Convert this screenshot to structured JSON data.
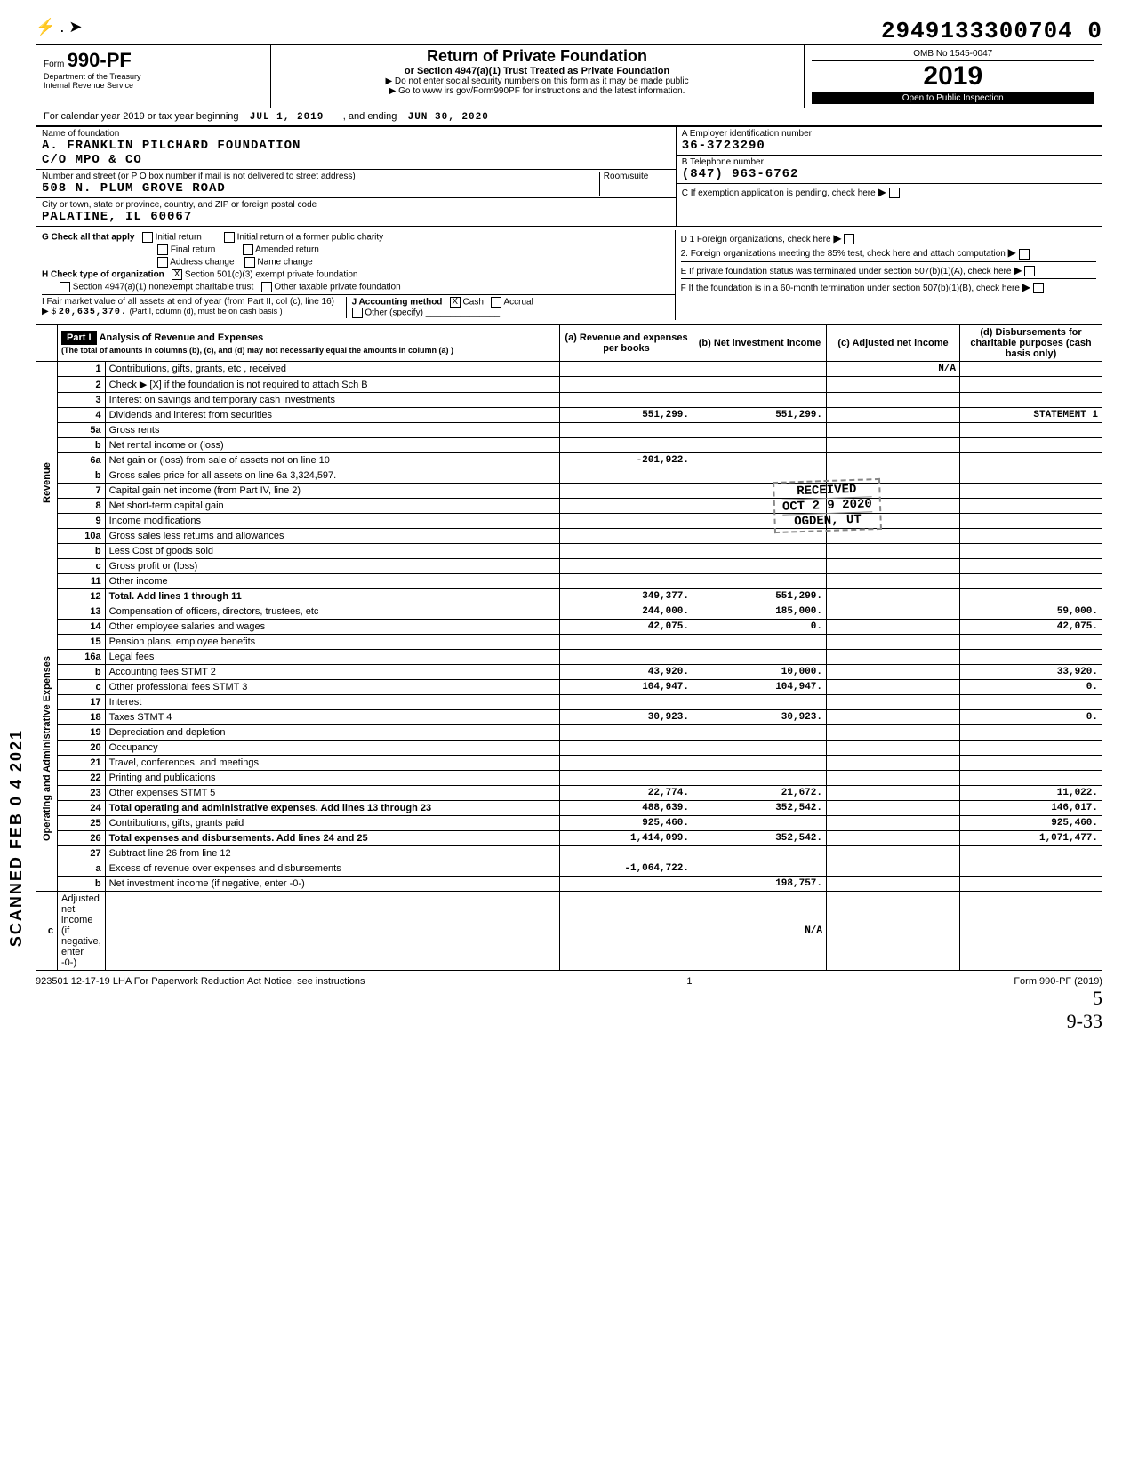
{
  "doc_number": "2949133300704 0",
  "form": {
    "label": "Form",
    "number": "990-PF",
    "dept": "Department of the Treasury",
    "irs": "Internal Revenue Service",
    "title": "Return of Private Foundation",
    "subtitle": "or Section 4947(a)(1) Trust Treated as Private Foundation",
    "instr1": "▶ Do not enter social security numbers on this form as it may be made public",
    "instr2": "▶ Go to www irs gov/Form990PF for instructions and the latest information.",
    "omb": "OMB No 1545-0047",
    "year": "2019",
    "inspection": "Open to Public Inspection"
  },
  "cal_year": {
    "label": "For calendar year 2019 or tax year beginning",
    "begin": "JUL 1, 2019",
    "ending_label": ", and ending",
    "end": "JUN 30, 2020"
  },
  "name": {
    "label": "Name of foundation",
    "line1": "A. FRANKLIN PILCHARD FOUNDATION",
    "line2": "C/O MPO & CO"
  },
  "address": {
    "street_label": "Number and street (or P O box number if mail is not delivered to street address)",
    "room_label": "Room/suite",
    "street": "508 N. PLUM GROVE ROAD",
    "city_label": "City or town, state or province, country, and ZIP or foreign postal code",
    "city": "PALATINE, IL  60067"
  },
  "ein": {
    "label": "A Employer identification number",
    "value": "36-3723290"
  },
  "phone": {
    "label": "B Telephone number",
    "value": "(847) 963-6762"
  },
  "c_label": "C If exemption application is pending, check here",
  "d1_label": "D 1 Foreign organizations, check here",
  "d2_label": "2. Foreign organizations meeting the 85% test, check here and attach computation",
  "e_label": "E If private foundation status was terminated under section 507(b)(1)(A), check here",
  "f_label": "F If the foundation is in a 60-month termination under section 507(b)(1)(B), check here",
  "g": {
    "label": "G  Check all that apply",
    "opts": [
      "Initial return",
      "Final return",
      "Address change",
      "Initial return of a former public charity",
      "Amended return",
      "Name change"
    ]
  },
  "h": {
    "label": "H  Check type of organization",
    "opt1": "Section 501(c)(3) exempt private foundation",
    "opt2": "Section 4947(a)(1) nonexempt charitable trust",
    "opt3": "Other taxable private foundation",
    "checked": "X"
  },
  "i": {
    "label": "I  Fair market value of all assets at end of year (from Part II, col (c), line 16)",
    "amount_label": "▶ $",
    "amount": "20,635,370.",
    "note": "(Part I, column (d), must be on cash basis )"
  },
  "j": {
    "label": "J  Accounting method",
    "cash": "Cash",
    "cash_chk": "X",
    "accrual": "Accrual",
    "other": "Other (specify)"
  },
  "part1": {
    "title": "Part I",
    "heading": "Analysis of Revenue and Expenses",
    "note": "(The total of amounts in columns (b), (c), and (d) may not necessarily equal the amounts in column (a) )",
    "col_a": "(a) Revenue and expenses per books",
    "col_b": "(b) Net investment income",
    "col_c": "(c) Adjusted net income",
    "col_d": "(d) Disbursements for charitable purposes (cash basis only)"
  },
  "side": {
    "revenue": "Revenue",
    "expenses": "Operating and Administrative Expenses"
  },
  "scanned": "SCANNED FEB 0 4 2021",
  "stamp": {
    "received": "RECEIVED",
    "date": "OCT 2 9 2020",
    "loc": "OGDEN, UT"
  },
  "rows": [
    {
      "n": "1",
      "label": "Contributions, gifts, grants, etc , received",
      "a": "",
      "b": "",
      "c": "N/A",
      "d": ""
    },
    {
      "n": "2",
      "label": "Check ▶ [X] if the foundation is not required to attach Sch B",
      "a": "",
      "b": "",
      "c": "",
      "d": ""
    },
    {
      "n": "3",
      "label": "Interest on savings and temporary cash investments",
      "a": "",
      "b": "",
      "c": "",
      "d": ""
    },
    {
      "n": "4",
      "label": "Dividends and interest from securities",
      "a": "551,299.",
      "b": "551,299.",
      "c": "",
      "d": "STATEMENT 1"
    },
    {
      "n": "5a",
      "label": "Gross rents",
      "a": "",
      "b": "",
      "c": "",
      "d": ""
    },
    {
      "n": "b",
      "label": "Net rental income or (loss)",
      "a": "",
      "b": "",
      "c": "",
      "d": ""
    },
    {
      "n": "6a",
      "label": "Net gain or (loss) from sale of assets not on line 10",
      "a": "-201,922.",
      "b": "",
      "c": "",
      "d": ""
    },
    {
      "n": "b",
      "label": "Gross sales price for all assets on line 6a   3,324,597.",
      "a": "",
      "b": "",
      "c": "",
      "d": ""
    },
    {
      "n": "7",
      "label": "Capital gain net income (from Part IV, line 2)",
      "a": "",
      "b": "",
      "c": "",
      "d": ""
    },
    {
      "n": "8",
      "label": "Net short-term capital gain",
      "a": "",
      "b": "",
      "c": "",
      "d": ""
    },
    {
      "n": "9",
      "label": "Income modifications",
      "a": "",
      "b": "",
      "c": "",
      "d": ""
    },
    {
      "n": "10a",
      "label": "Gross sales less returns and allowances",
      "a": "",
      "b": "",
      "c": "",
      "d": ""
    },
    {
      "n": "b",
      "label": "Less Cost of goods sold",
      "a": "",
      "b": "",
      "c": "",
      "d": ""
    },
    {
      "n": "c",
      "label": "Gross profit or (loss)",
      "a": "",
      "b": "",
      "c": "",
      "d": ""
    },
    {
      "n": "11",
      "label": "Other income",
      "a": "",
      "b": "",
      "c": "",
      "d": ""
    },
    {
      "n": "12",
      "label": "Total. Add lines 1 through 11",
      "a": "349,377.",
      "b": "551,299.",
      "c": "",
      "d": ""
    },
    {
      "n": "13",
      "label": "Compensation of officers, directors, trustees, etc",
      "a": "244,000.",
      "b": "185,000.",
      "c": "",
      "d": "59,000."
    },
    {
      "n": "14",
      "label": "Other employee salaries and wages",
      "a": "42,075.",
      "b": "0.",
      "c": "",
      "d": "42,075."
    },
    {
      "n": "15",
      "label": "Pension plans, employee benefits",
      "a": "",
      "b": "",
      "c": "",
      "d": ""
    },
    {
      "n": "16a",
      "label": "Legal fees",
      "a": "",
      "b": "",
      "c": "",
      "d": ""
    },
    {
      "n": "b",
      "label": "Accounting fees            STMT 2",
      "a": "43,920.",
      "b": "10,000.",
      "c": "",
      "d": "33,920."
    },
    {
      "n": "c",
      "label": "Other professional fees    STMT 3",
      "a": "104,947.",
      "b": "104,947.",
      "c": "",
      "d": "0."
    },
    {
      "n": "17",
      "label": "Interest",
      "a": "",
      "b": "",
      "c": "",
      "d": ""
    },
    {
      "n": "18",
      "label": "Taxes                      STMT 4",
      "a": "30,923.",
      "b": "30,923.",
      "c": "",
      "d": "0."
    },
    {
      "n": "19",
      "label": "Depreciation and depletion",
      "a": "",
      "b": "",
      "c": "",
      "d": ""
    },
    {
      "n": "20",
      "label": "Occupancy",
      "a": "",
      "b": "",
      "c": "",
      "d": ""
    },
    {
      "n": "21",
      "label": "Travel, conferences, and meetings",
      "a": "",
      "b": "",
      "c": "",
      "d": ""
    },
    {
      "n": "22",
      "label": "Printing and publications",
      "a": "",
      "b": "",
      "c": "",
      "d": ""
    },
    {
      "n": "23",
      "label": "Other expenses             STMT 5",
      "a": "22,774.",
      "b": "21,672.",
      "c": "",
      "d": "11,022."
    },
    {
      "n": "24",
      "label": "Total operating and administrative expenses. Add lines 13 through 23",
      "a": "488,639.",
      "b": "352,542.",
      "c": "",
      "d": "146,017."
    },
    {
      "n": "25",
      "label": "Contributions, gifts, grants paid",
      "a": "925,460.",
      "b": "",
      "c": "",
      "d": "925,460."
    },
    {
      "n": "26",
      "label": "Total expenses and disbursements. Add lines 24 and 25",
      "a": "1,414,099.",
      "b": "352,542.",
      "c": "",
      "d": "1,071,477."
    },
    {
      "n": "27",
      "label": "Subtract line 26 from line 12",
      "a": "",
      "b": "",
      "c": "",
      "d": ""
    },
    {
      "n": "a",
      "label": "Excess of revenue over expenses and disbursements",
      "a": "-1,064,722.",
      "b": "",
      "c": "",
      "d": ""
    },
    {
      "n": "b",
      "label": "Net investment income (if negative, enter -0-)",
      "a": "",
      "b": "198,757.",
      "c": "",
      "d": ""
    },
    {
      "n": "c",
      "label": "Adjusted net income (if negative, enter -0-)",
      "a": "",
      "b": "",
      "c": "N/A",
      "d": ""
    }
  ],
  "footer": {
    "left": "923501 12-17-19   LHA  For Paperwork Reduction Act Notice, see instructions",
    "page": "1",
    "right": "Form 990-PF (2019)",
    "hand1": "5",
    "hand2": "9-33"
  }
}
